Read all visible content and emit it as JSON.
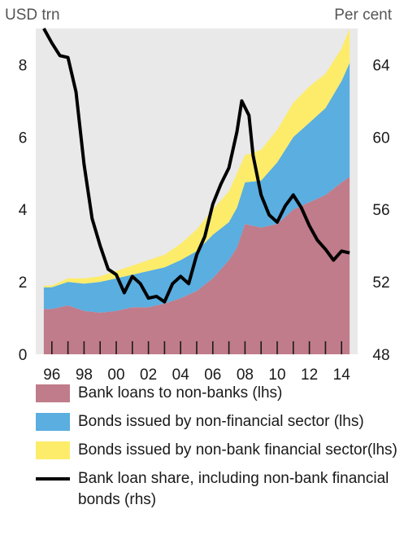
{
  "chart_data": {
    "type": "area",
    "stacked": true,
    "left_axis_unit": "USD trn",
    "right_axis_unit": "Per cent",
    "ylim_left": [
      0,
      9
    ],
    "ylim_right": [
      48,
      66
    ],
    "yticks_left": [
      "0",
      "2",
      "4",
      "6",
      "8"
    ],
    "yticks_right": [
      "48",
      "52",
      "56",
      "60",
      "64"
    ],
    "xtick_labels": [
      "96",
      "98",
      "00",
      "02",
      "04",
      "06",
      "08",
      "10",
      "12",
      "14"
    ],
    "grid": false,
    "legend_position": "bottom",
    "x": [
      1995.5,
      1996,
      1997,
      1998,
      1999,
      2000,
      2001,
      2002,
      2003,
      2004,
      2005,
      2006,
      2007,
      2007.5,
      2008,
      2009,
      2010,
      2011,
      2012,
      2013,
      2014,
      2014.5
    ],
    "series": [
      {
        "name": "Bank loans to non-banks (lhs)",
        "color": "#c07c8a",
        "values": [
          1.25,
          1.25,
          1.35,
          1.2,
          1.15,
          1.2,
          1.3,
          1.3,
          1.4,
          1.55,
          1.75,
          2.1,
          2.6,
          2.95,
          3.6,
          3.5,
          3.6,
          4.0,
          4.2,
          4.4,
          4.75,
          4.9
        ]
      },
      {
        "name": "Bonds issued by non-financial sector (lhs)",
        "color": "#5aaee0",
        "values": [
          0.6,
          0.6,
          0.65,
          0.75,
          0.85,
          0.9,
          0.9,
          1.0,
          1.0,
          1.05,
          1.1,
          1.2,
          1.05,
          1.1,
          1.15,
          1.3,
          1.7,
          2.0,
          2.2,
          2.4,
          2.8,
          3.15
        ]
      },
      {
        "name": "Bonds issued by non-bank financial sector(lhs)",
        "color": "#fcec6a",
        "values": [
          0.05,
          0.05,
          0.1,
          0.15,
          0.15,
          0.2,
          0.25,
          0.3,
          0.35,
          0.45,
          0.6,
          0.7,
          0.85,
          0.95,
          0.75,
          0.85,
          0.9,
          0.95,
          1.0,
          0.95,
          0.9,
          0.95
        ]
      },
      {
        "name": "Bank loan share, including non-bank financial bonds (rhs)",
        "color": "#000000",
        "type": "line",
        "axis": "right",
        "x": [
          1995.5,
          1996,
          1996.5,
          1997,
          1997.5,
          1998,
          1998.5,
          1999,
          1999.5,
          2000,
          2000.5,
          2001,
          2001.5,
          2002,
          2002.5,
          2003,
          2003.5,
          2004,
          2004.5,
          2005,
          2005.5,
          2006,
          2006.5,
          2007,
          2007.5,
          2007.8,
          2008.25,
          2008.5,
          2009,
          2009.5,
          2010,
          2010.5,
          2011,
          2011.5,
          2012,
          2012.5,
          2013,
          2013.5,
          2014,
          2014.5
        ],
        "values": [
          66,
          65.2,
          64.5,
          64.4,
          62.5,
          58.5,
          55.5,
          54,
          52.7,
          52.4,
          51.4,
          52.3,
          51.9,
          51.1,
          51.2,
          50.9,
          51.9,
          52.3,
          51.9,
          53.5,
          54.5,
          56.3,
          57.4,
          58.3,
          60.3,
          62,
          61.2,
          59,
          56.8,
          55.7,
          55.3,
          56.2,
          56.8,
          56.1,
          55.1,
          54.3,
          53.8,
          53.2,
          53.7,
          53.6
        ]
      }
    ]
  },
  "legend": [
    {
      "label": "Bank loans to non-banks (lhs)",
      "swatch": "#c07c8a"
    },
    {
      "label": "Bonds issued by non-financial sector (lhs)",
      "swatch": "#5aaee0"
    },
    {
      "label": "Bonds issued by non-bank financial sector(lhs)",
      "swatch": "#fcec6a"
    },
    {
      "label": "Bank loan share, including non-bank financial bonds (rhs)",
      "swatch": "line"
    }
  ]
}
